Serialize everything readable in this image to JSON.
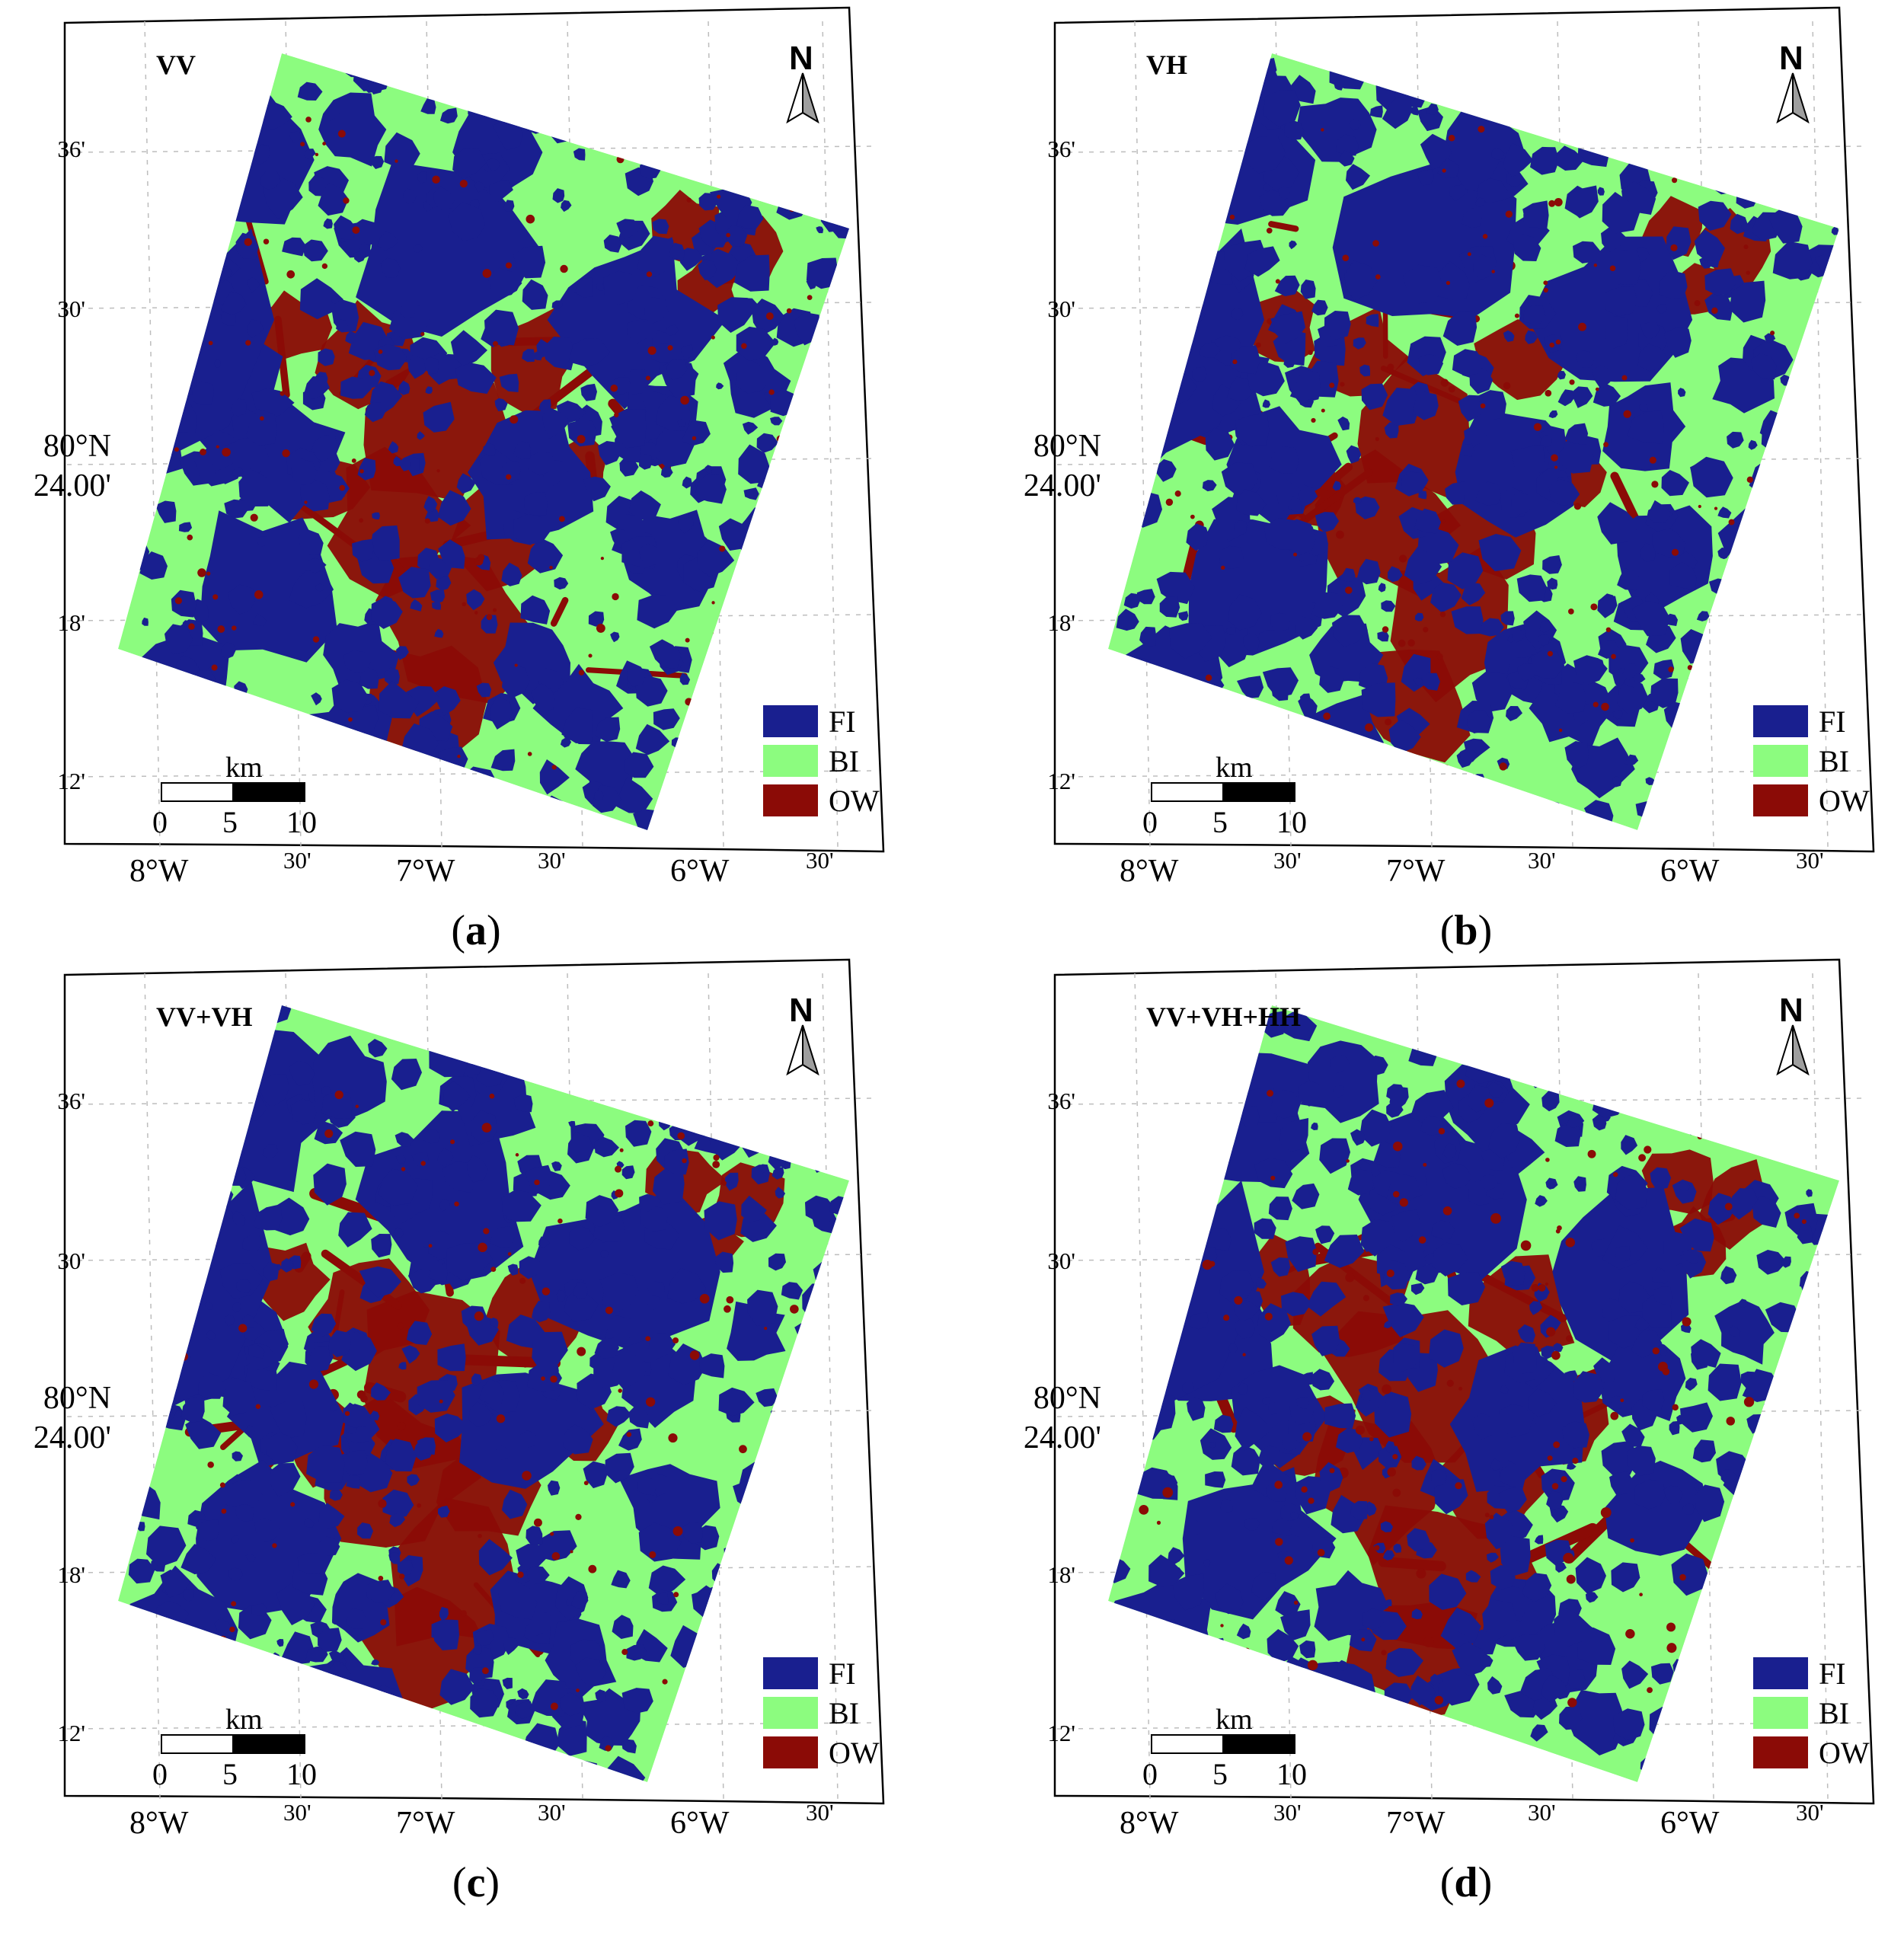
{
  "colors": {
    "fi": "#191f8f",
    "bi": "#8cfc7f",
    "ow": "#8b0b06"
  },
  "axes": {
    "lat_minor": [
      "36'",
      "30'",
      "18'",
      "12'"
    ],
    "lat_major": [
      "80°N",
      "24.00'"
    ],
    "lon_major": [
      "8°W",
      "7°W",
      "6°W"
    ],
    "lon_minor": [
      "30'",
      "30'",
      "30'"
    ]
  },
  "legend": [
    {
      "label": "FI",
      "color": "#191f8f"
    },
    {
      "label": "BI",
      "color": "#8cfc7f"
    },
    {
      "label": "OW",
      "color": "#8b0b06"
    }
  ],
  "scalebar": {
    "unit": "km",
    "ticks": [
      "0",
      "5",
      "10"
    ]
  },
  "north": "N",
  "panels": [
    {
      "id": "a",
      "title": "VV",
      "caption_letter": "a",
      "ow_level": 0.4
    },
    {
      "id": "b",
      "title": "VH",
      "caption_letter": "b",
      "ow_level": 0.35
    },
    {
      "id": "c",
      "title": "VV+VH",
      "caption_letter": "c",
      "ow_level": 0.45
    },
    {
      "id": "d",
      "title": "VV+VH+HH",
      "caption_letter": "d",
      "ow_level": 0.5
    }
  ]
}
